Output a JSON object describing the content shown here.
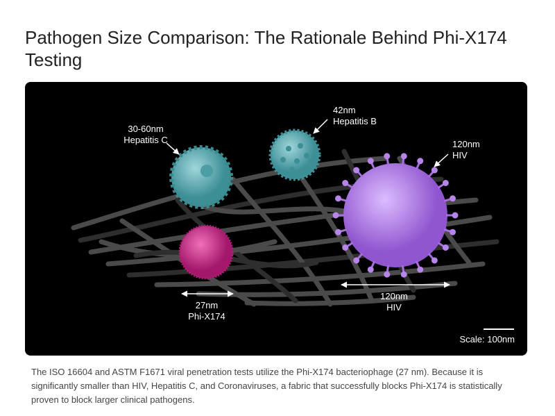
{
  "title": "Pathogen Size Comparison: The Rationale Behind Phi-X174 Testing",
  "figure": {
    "labels": [
      {
        "size": "30-60nm",
        "name": "Hepatitis C"
      },
      {
        "size": "42nm",
        "name": "Hepatitis B"
      },
      {
        "size": "120nm",
        "name": "HIV"
      },
      {
        "size": "27nm",
        "name": "Phi-X174"
      },
      {
        "size": "120nm",
        "name": "HIV"
      }
    ],
    "scale": "Scale: 100nm"
  },
  "caption": "The ISO 16604 and ASTM F1671 viral penetration tests utilize the Phi-X174 bacteriophage (27 nm). Because it is significantly smaller than HIV, Hepatitis C, and Coronaviruses, a fabric that successfully blocks Phi-X174 is statistically proven to block larger clinical pathogens."
}
